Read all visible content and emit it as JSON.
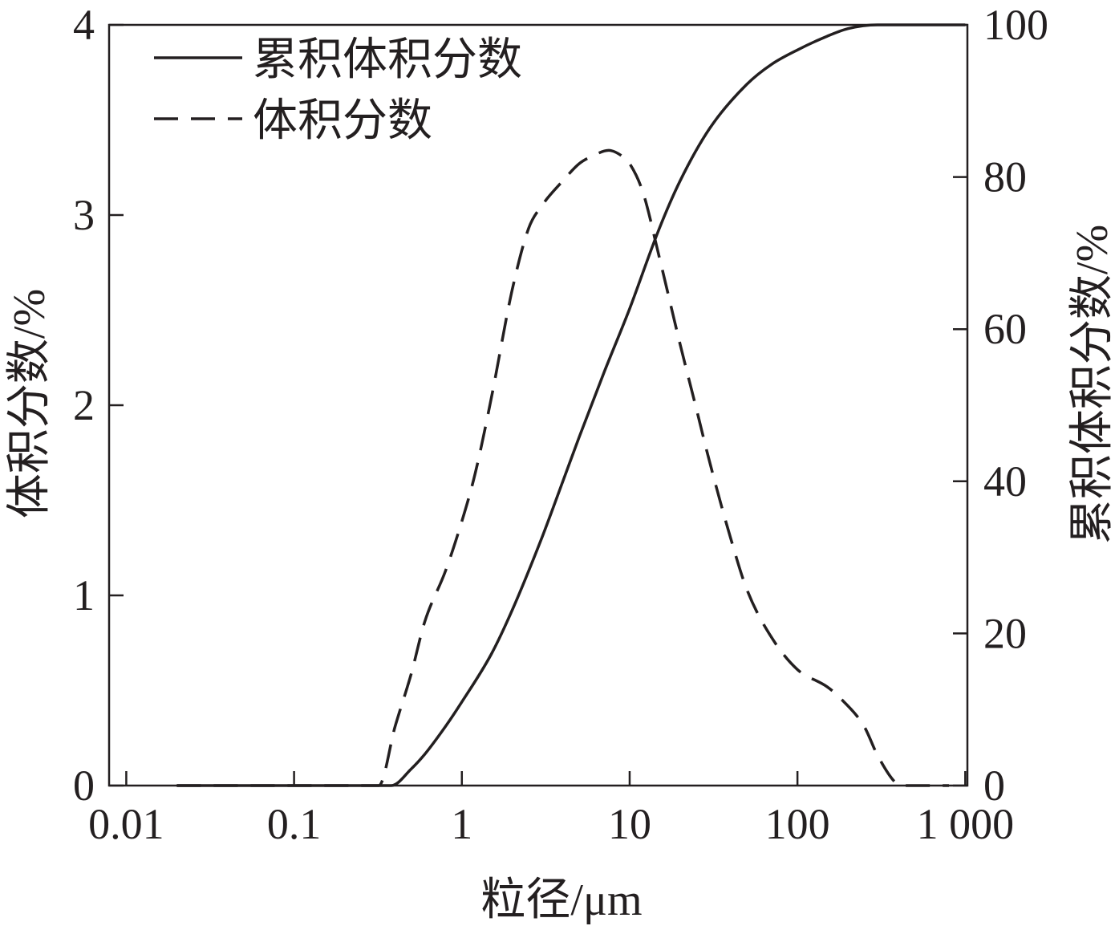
{
  "chart_data": {
    "type": "line",
    "xlabel": "粒径/μm",
    "ylabel": "体积分数/%",
    "y2label": "累积体积分数/%",
    "x_scale": "log",
    "xlim": [
      0.0079,
      1030
    ],
    "ylim": [
      0,
      4
    ],
    "y2lim": [
      0,
      100
    ],
    "x_ticks": [
      0.01,
      0.1,
      1,
      10,
      100,
      1000
    ],
    "x_tick_labels": [
      "0.01",
      "0.1",
      "1",
      "10",
      "100",
      "1 000"
    ],
    "y_ticks": [
      0,
      1,
      2,
      3,
      4
    ],
    "y_tick_labels": [
      "0",
      "1",
      "2",
      "3",
      "4"
    ],
    "y2_ticks": [
      0,
      20,
      40,
      60,
      80,
      100
    ],
    "y2_tick_labels": [
      "0",
      "20",
      "40",
      "60",
      "80",
      "100"
    ],
    "grid": false,
    "legend": "top-left",
    "axis_color": "#231f20",
    "series": [
      {
        "name": "累积体积分数",
        "y_axis": "right",
        "line_style": "solid",
        "color": "#231f20",
        "x": [
          0.02,
          0.1,
          0.38,
          0.5,
          0.6,
          0.8,
          1,
          1.5,
          2,
          3,
          4,
          5,
          7,
          10,
          15,
          20,
          30,
          50,
          70,
          100,
          150,
          200,
          300,
          1000
        ],
        "y": [
          0,
          0,
          0,
          2.2,
          4.1,
          7.8,
          11.0,
          17.3,
          23.1,
          32.6,
          40.0,
          45.8,
          54.2,
          62.7,
          73.2,
          79.5,
          86.4,
          92.2,
          94.8,
          96.7,
          98.5,
          99.5,
          100,
          100
        ]
      },
      {
        "name": "体积分数",
        "y_axis": "left",
        "line_style": "dashed",
        "color": "#231f20",
        "x": [
          0.02,
          0.1,
          0.32,
          0.4,
          0.5,
          0.6,
          0.8,
          1,
          1.2,
          1.5,
          2,
          2.5,
          3,
          4,
          5,
          6,
          7.5,
          9,
          10,
          12,
          15,
          20,
          25,
          30,
          40,
          50,
          70,
          100,
          150,
          180,
          250,
          300,
          380,
          420,
          800
        ],
        "y": [
          0,
          0,
          0,
          0.31,
          0.59,
          0.86,
          1.13,
          1.39,
          1.64,
          2.04,
          2.61,
          2.93,
          3.05,
          3.18,
          3.27,
          3.31,
          3.34,
          3.31,
          3.27,
          3.12,
          2.78,
          2.32,
          1.98,
          1.7,
          1.3,
          1.03,
          0.78,
          0.61,
          0.52,
          0.46,
          0.31,
          0.16,
          0.02,
          0,
          0
        ]
      }
    ]
  }
}
